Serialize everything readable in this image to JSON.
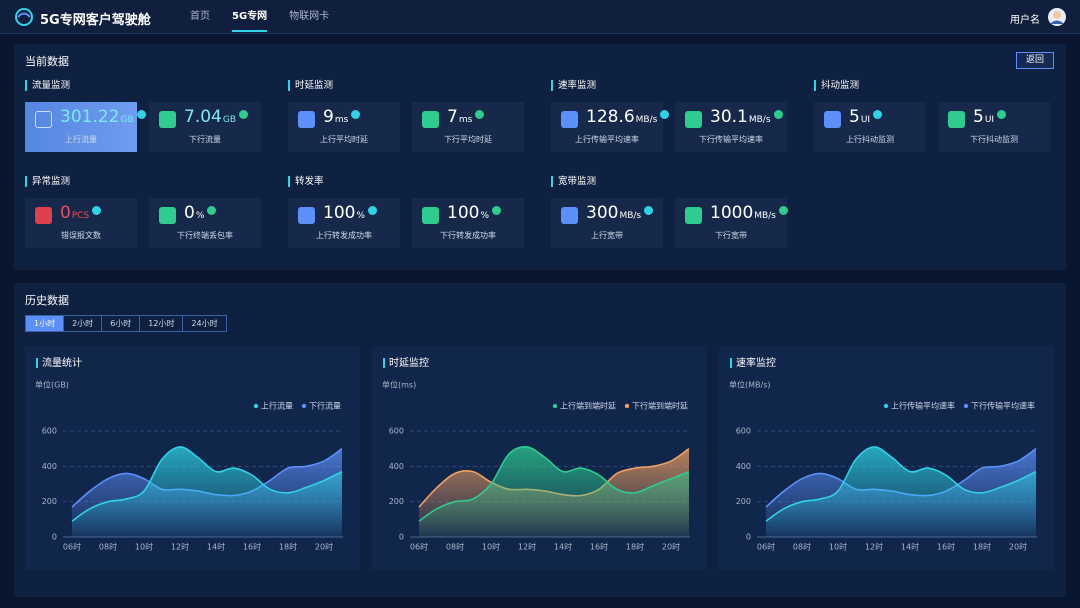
{
  "header": {
    "title": "5G专网客户驾驶舱",
    "nav": [
      "首页",
      "5G专网",
      "物联网卡"
    ],
    "user": "用户名"
  },
  "current": {
    "title": "当前数据",
    "back": "返回",
    "groups": [
      {
        "title": "流量监测",
        "cards": [
          {
            "value": "301.22",
            "unit": "GB",
            "label": "上行流量"
          },
          {
            "value": "7.04",
            "unit": "GB",
            "label": "下行流量"
          }
        ]
      },
      {
        "title": "时延监测",
        "cards": [
          {
            "value": "9",
            "unit": "ms",
            "label": "上行平均时延"
          },
          {
            "value": "7",
            "unit": "ms",
            "label": "下行平均时延"
          }
        ]
      },
      {
        "title": "速率监测",
        "cards": [
          {
            "value": "128.6",
            "unit": "MB/s",
            "label": "上行传输平均速率"
          },
          {
            "value": "30.1",
            "unit": "MB/s",
            "label": "下行传输平均速率"
          }
        ]
      },
      {
        "title": "抖动监测",
        "cards": [
          {
            "value": "5",
            "unit": "UI",
            "label": "上行抖动监测"
          },
          {
            "value": "5",
            "unit": "UI",
            "label": "下行抖动监测"
          }
        ]
      },
      {
        "title": "异常监测",
        "cards": [
          {
            "value": "0",
            "unit": "PCS",
            "label": "错误报文数"
          },
          {
            "value": "0",
            "unit": "%",
            "label": "下行终端丢包率"
          }
        ]
      },
      {
        "title": "转发率",
        "cards": [
          {
            "value": "100",
            "unit": "%",
            "label": "上行转发成功率"
          },
          {
            "value": "100",
            "unit": "%",
            "label": "下行转发成功率"
          }
        ]
      },
      {
        "title": "宽带监测",
        "cards": [
          {
            "value": "300",
            "unit": "MB/s",
            "label": "上行宽带"
          },
          {
            "value": "1000",
            "unit": "MB/s",
            "label": "下行宽带"
          }
        ]
      }
    ]
  },
  "history": {
    "title": "历史数据",
    "tabs": [
      "1小时",
      "2小时",
      "6小时",
      "12小时",
      "24小时"
    ],
    "charts": [
      {
        "type": "area",
        "title": "流量统计",
        "unit": "单位(GB)",
        "categories": [
          "06时",
          null,
          "08时",
          null,
          "10时",
          null,
          "12时",
          null,
          "14时",
          null,
          "16时",
          null,
          "18时",
          null,
          "20时",
          null
        ],
        "ylim": [
          0,
          600
        ],
        "yticks": [
          0,
          200,
          400,
          600
        ],
        "grid": true,
        "series": [
          {
            "name": "上行流量",
            "color": "#2fd3e6",
            "values": [
              90,
              160,
              200,
              215,
              260,
              440,
              510,
              450,
              370,
              390,
              350,
              270,
              250,
              280,
              320,
              370
            ]
          },
          {
            "name": "下行流量",
            "color": "#5b8ff9",
            "values": [
              170,
              260,
              330,
              360,
              330,
              270,
              270,
              260,
              240,
              235,
              260,
              320,
              390,
              400,
              430,
              500
            ]
          }
        ]
      },
      {
        "type": "area",
        "title": "时延监控",
        "unit": "单位(ms)",
        "categories": [
          "06时",
          null,
          "08时",
          null,
          "10时",
          null,
          "12时",
          null,
          "14时",
          null,
          "16时",
          null,
          "18时",
          null,
          "20时",
          null
        ],
        "ylim": [
          0,
          600
        ],
        "yticks": [
          0,
          200,
          400,
          600
        ],
        "grid": true,
        "series": [
          {
            "name": "上行端到端时延",
            "color": "#2ecc8f",
            "values": [
              90,
              160,
              200,
              215,
              300,
              470,
              510,
              450,
              370,
              390,
              350,
              270,
              250,
              290,
              330,
              370
            ]
          },
          {
            "name": "下行端到端时延",
            "color": "#f0a060",
            "values": [
              170,
              280,
              360,
              370,
              310,
              270,
              270,
              260,
              240,
              235,
              270,
              360,
              390,
              400,
              430,
              500
            ]
          }
        ]
      },
      {
        "type": "area",
        "title": "速率监控",
        "unit": "单位(MB/s)",
        "categories": [
          "06时",
          null,
          "08时",
          null,
          "10时",
          null,
          "12时",
          null,
          "14时",
          null,
          "16时",
          null,
          "18时",
          null,
          "20时",
          null
        ],
        "ylim": [
          0,
          600
        ],
        "yticks": [
          0,
          200,
          400,
          600
        ],
        "grid": true,
        "series": [
          {
            "name": "上行传输平均速率",
            "color": "#2fd3e6",
            "values": [
              90,
              160,
              200,
              215,
              260,
              440,
              510,
              450,
              370,
              390,
              350,
              270,
              250,
              280,
              320,
              370
            ]
          },
          {
            "name": "下行传输平均速率",
            "color": "#5b8ff9",
            "values": [
              170,
              260,
              330,
              360,
              330,
              270,
              270,
              260,
              240,
              235,
              260,
              320,
              390,
              400,
              430,
              500
            ]
          }
        ]
      }
    ]
  }
}
